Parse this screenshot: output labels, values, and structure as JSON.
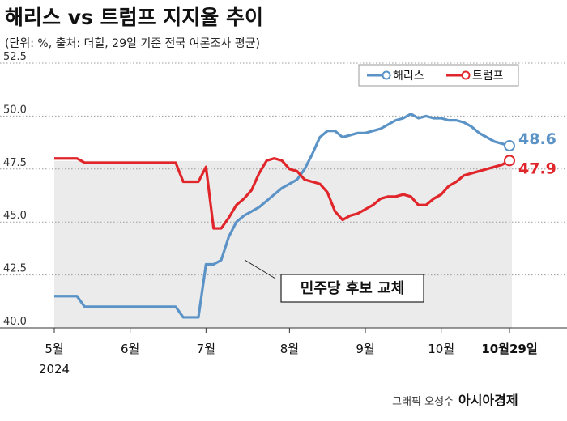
{
  "chart_data": {
    "type": "line",
    "title": "해리스 vs 트럼프 지지율 추이",
    "subtitle": "(단위: %, 출처: 더힐, 29일 기준 전국 여론조사 평균)",
    "annotation": "민주당 후보 교체",
    "credit": "그래픽 오성수",
    "source_brand": "아시아경제",
    "year_label": "2024",
    "categories": [
      "5월",
      null,
      null,
      null,
      null,
      null,
      null,
      null,
      null,
      null,
      "6월",
      null,
      null,
      null,
      null,
      null,
      null,
      null,
      null,
      null,
      "7월",
      null,
      null,
      null,
      null,
      null,
      null,
      null,
      null,
      null,
      null,
      "8월",
      null,
      null,
      null,
      null,
      null,
      null,
      null,
      null,
      null,
      "9월",
      null,
      null,
      null,
      null,
      null,
      null,
      null,
      null,
      null,
      "10월",
      null,
      null,
      null,
      null,
      null,
      null,
      null,
      null,
      "10월29일"
    ],
    "series": [
      {
        "name": "해리스",
        "color": "#5b93c7",
        "values": [
          41.5,
          41.5,
          41.5,
          41.5,
          41.0,
          41.0,
          41.0,
          41.0,
          41.0,
          41.0,
          41.0,
          41.0,
          41.0,
          41.0,
          41.0,
          41.0,
          41.0,
          40.5,
          40.5,
          40.5,
          43.0,
          43.0,
          43.2,
          44.3,
          45.0,
          45.3,
          45.5,
          45.7,
          46.0,
          46.3,
          46.6,
          46.8,
          47.0,
          47.5,
          48.2,
          49.0,
          49.3,
          49.3,
          49.0,
          49.1,
          49.2,
          49.2,
          49.3,
          49.4,
          49.6,
          49.8,
          49.9,
          50.1,
          49.9,
          50.0,
          49.9,
          49.9,
          49.8,
          49.8,
          49.7,
          49.5,
          49.2,
          49.0,
          48.8,
          48.7,
          48.6
        ]
      },
      {
        "name": "트럼프",
        "color": "#e0262b",
        "values": [
          48.0,
          48.0,
          48.0,
          48.0,
          47.8,
          47.8,
          47.8,
          47.8,
          47.8,
          47.8,
          47.8,
          47.8,
          47.8,
          47.8,
          47.8,
          47.8,
          47.8,
          46.9,
          46.9,
          46.9,
          47.6,
          44.7,
          44.7,
          45.2,
          45.8,
          46.1,
          46.5,
          47.3,
          47.9,
          48.0,
          47.9,
          47.5,
          47.4,
          47.0,
          46.9,
          46.8,
          46.4,
          45.5,
          45.1,
          45.3,
          45.4,
          45.6,
          45.8,
          46.1,
          46.2,
          46.2,
          46.3,
          46.2,
          45.8,
          45.8,
          46.1,
          46.3,
          46.7,
          46.9,
          47.2,
          47.3,
          47.4,
          47.5,
          47.6,
          47.7,
          47.9
        ]
      }
    ],
    "ylim": [
      40,
      52.5
    ],
    "yticks": [
      {
        "value": 40,
        "label": "40.0"
      },
      42.5,
      {
        "value": 45,
        "label": "45.0"
      },
      47.5,
      {
        "value": 50,
        "label": "50.0"
      },
      52.5
    ],
    "grid": true,
    "legend": "top-right"
  }
}
